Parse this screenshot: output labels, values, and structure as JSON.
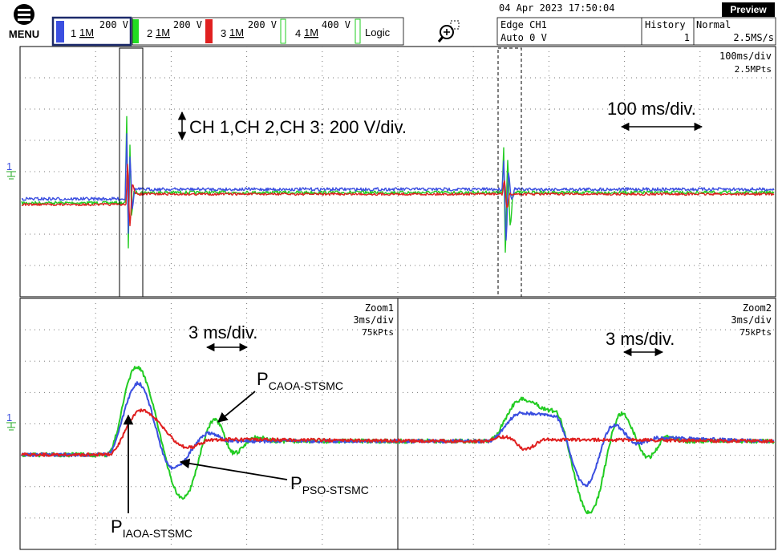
{
  "header": {
    "menu": "MENU",
    "channels": [
      {
        "number": "1",
        "impedance": "1M",
        "scale": "200 V"
      },
      {
        "number": "2",
        "impedance": "1M",
        "scale": "200 V"
      },
      {
        "number": "3",
        "impedance": "1M",
        "scale": "200 V"
      },
      {
        "number": "4",
        "impedance": "1M",
        "scale": "400 V"
      }
    ],
    "logic": "Logic",
    "datetime": "04 Apr 2023 17:50:04",
    "mode": "Preview",
    "trigger": "Edge CH1",
    "trigger_level": "Auto 0 V",
    "history": "History",
    "history_count": "1",
    "acquisition": "Normal",
    "sample_rate": "2.5MS/s"
  },
  "main": {
    "timebase": "100ms/div",
    "points": "2.5MPts",
    "annotation_scale": "CH 1,CH 2,CH 3: 200 V/div.",
    "annotation_time": "100 ms/div."
  },
  "zoom1": {
    "name": "Zoom1",
    "timebase": "3ms/div",
    "points": "75kPts",
    "annotation_time": "3 ms/div.",
    "labels": [
      {
        "main": "P",
        "sub": "CAOA-STSMC"
      },
      {
        "main": "P",
        "sub": "PSO-STSMC"
      },
      {
        "main": "P",
        "sub": "IAOA-STSMC"
      }
    ]
  },
  "zoom2": {
    "name": "Zoom2",
    "timebase": "3ms/div",
    "points": "75kPts",
    "annotation_time": "3 ms/div."
  }
}
